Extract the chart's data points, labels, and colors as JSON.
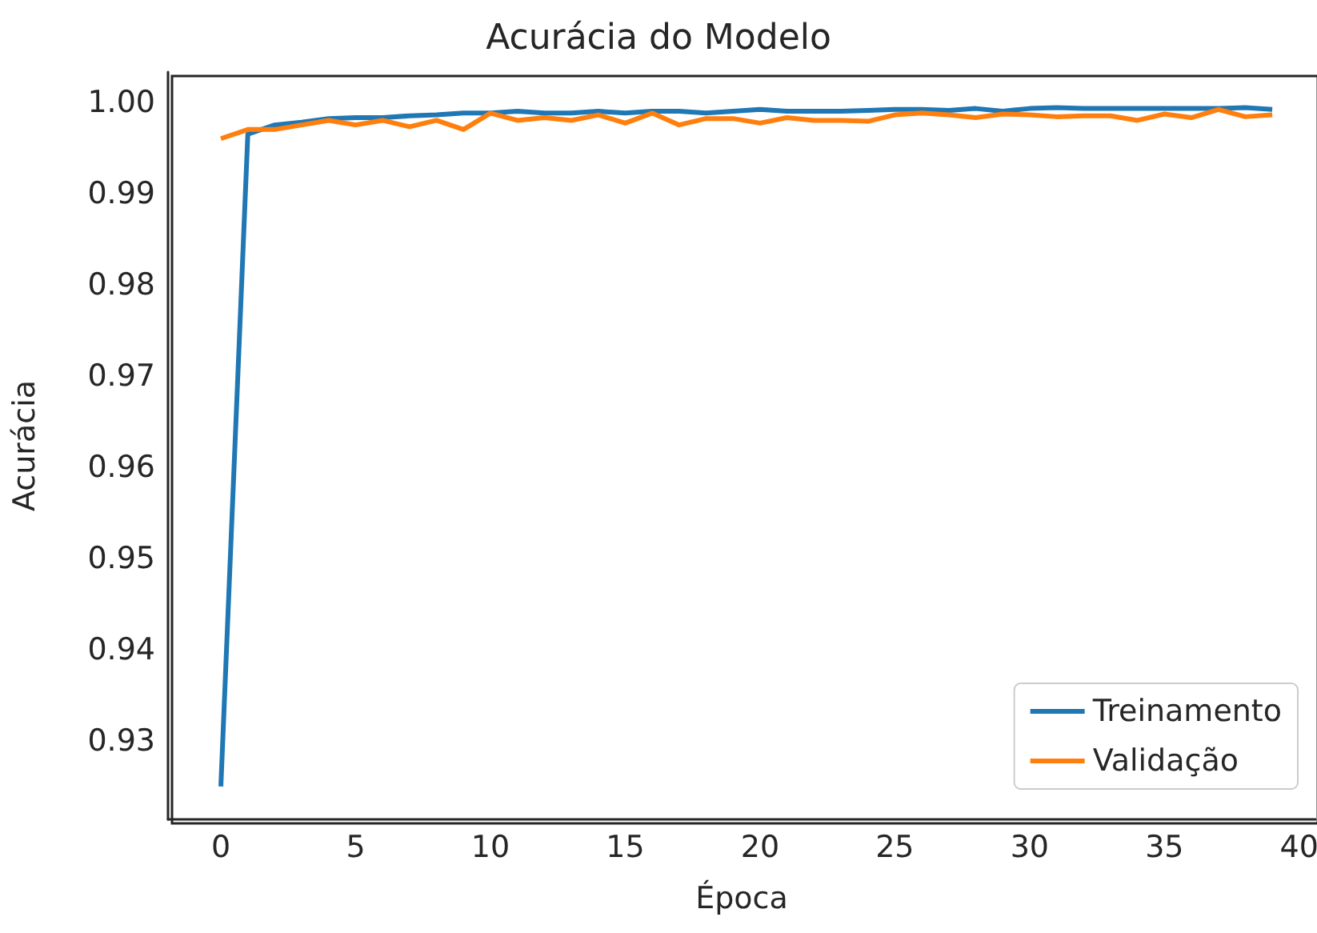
{
  "chart_data": {
    "type": "line",
    "title": "Acurácia do Modelo",
    "xlabel": "Época",
    "ylabel": "Acurácia",
    "x": [
      0,
      1,
      2,
      3,
      4,
      5,
      6,
      7,
      8,
      9,
      10,
      11,
      12,
      13,
      14,
      15,
      16,
      17,
      18,
      19,
      20,
      21,
      22,
      23,
      24,
      25,
      26,
      27,
      28,
      29,
      30,
      31,
      32,
      33,
      34,
      35,
      36,
      37,
      38,
      39
    ],
    "series": [
      {
        "name": "Treinamento",
        "color": "#1f77b4",
        "values": [
          0.925,
          0.9965,
          0.9975,
          0.9978,
          0.9982,
          0.9983,
          0.9983,
          0.9985,
          0.9986,
          0.9988,
          0.9988,
          0.999,
          0.9988,
          0.9988,
          0.999,
          0.9988,
          0.999,
          0.999,
          0.9988,
          0.999,
          0.9992,
          0.999,
          0.999,
          0.999,
          0.9991,
          0.9992,
          0.9992,
          0.9991,
          0.9993,
          0.999,
          0.9993,
          0.9994,
          0.9993,
          0.9993,
          0.9993,
          0.9993,
          0.9993,
          0.9993,
          0.9994,
          0.9992
        ]
      },
      {
        "name": "Validação",
        "color": "#ff7f0e",
        "values": [
          0.996,
          0.997,
          0.997,
          0.9975,
          0.998,
          0.9975,
          0.998,
          0.9973,
          0.998,
          0.997,
          0.9988,
          0.998,
          0.9983,
          0.998,
          0.9986,
          0.9977,
          0.9988,
          0.9975,
          0.9982,
          0.9982,
          0.9977,
          0.9983,
          0.998,
          0.998,
          0.9979,
          0.9986,
          0.9988,
          0.9986,
          0.9983,
          0.9987,
          0.9986,
          0.9984,
          0.9985,
          0.9985,
          0.998,
          0.9987,
          0.9983,
          0.9992,
          0.9984,
          0.9986
        ]
      }
    ],
    "xlim": [
      -1.96,
      40.6
    ],
    "xticks": [
      0,
      5,
      10,
      15,
      20,
      25,
      30,
      35,
      40
    ],
    "ylim": [
      0.9214,
      1.0033
    ],
    "yticks": [
      0.93,
      0.94,
      0.95,
      0.96,
      0.97,
      0.98,
      0.99,
      {
        "value": 1,
        "label": "1.00"
      }
    ],
    "grid": false,
    "legend": "bottom right",
    "marker": "none",
    "line_style": "solid"
  }
}
